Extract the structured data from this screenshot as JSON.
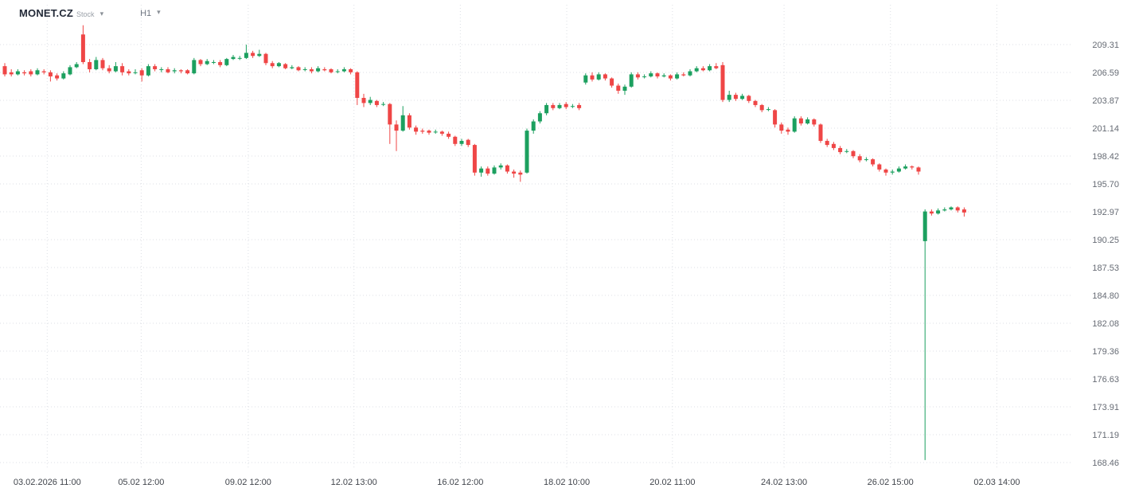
{
  "header": {
    "symbol": "MONET.CZ",
    "instrument_type": "Stock",
    "timeframe": "H1"
  },
  "icons": {
    "chevron_down": "▾"
  },
  "chart_data": {
    "type": "candlestick",
    "title": "MONET.CZ Stock H1",
    "ylim": [
      168.46,
      209.31
    ],
    "grid": true,
    "legend": "none",
    "y_ticks": [
      209.31,
      206.59,
      203.87,
      201.14,
      198.42,
      195.7,
      192.97,
      190.25,
      187.53,
      184.8,
      182.08,
      179.36,
      176.63,
      173.91,
      171.19,
      168.46
    ],
    "x_tick_pos_unit": "candle_index",
    "x_ticks": [
      {
        "pos": 6.5,
        "label": "03.02.2026 11:00"
      },
      {
        "pos": 20.9,
        "label": "05.02 12:00"
      },
      {
        "pos": 37.3,
        "label": "09.02 12:00"
      },
      {
        "pos": 53.5,
        "label": "12.02 13:00"
      },
      {
        "pos": 69.8,
        "label": "16.02 12:00"
      },
      {
        "pos": 86.1,
        "label": "18.02 10:00"
      },
      {
        "pos": 102.3,
        "label": "20.02 11:00"
      },
      {
        "pos": 119.4,
        "label": "24.02 13:00"
      },
      {
        "pos": 135.7,
        "label": "26.02 15:00"
      },
      {
        "pos": 152,
        "label": "02.03 14:00"
      }
    ],
    "candle_format": [
      "open",
      "high",
      "low",
      "close"
    ],
    "candles": [
      [
        207.2,
        207.5,
        206.2,
        206.4
      ],
      [
        206.6,
        206.9,
        206.2,
        206.4
      ],
      [
        206.4,
        206.9,
        206.3,
        206.7
      ],
      [
        206.6,
        206.8,
        206.3,
        206.5
      ],
      [
        206.7,
        206.9,
        206.2,
        206.4
      ],
      [
        206.4,
        207.0,
        206.3,
        206.8
      ],
      [
        206.7,
        206.9,
        206.4,
        206.6
      ],
      [
        206.6,
        206.8,
        205.7,
        206.2
      ],
      [
        206.3,
        206.5,
        205.8,
        206.0
      ],
      [
        206.0,
        206.7,
        205.9,
        206.5
      ],
      [
        206.4,
        207.3,
        206.3,
        207.1
      ],
      [
        207.1,
        207.6,
        207.0,
        207.4
      ],
      [
        210.3,
        211.2,
        207.4,
        207.6
      ],
      [
        207.6,
        207.9,
        206.6,
        206.9
      ],
      [
        206.9,
        208.1,
        206.8,
        207.8
      ],
      [
        207.8,
        208.0,
        206.8,
        207.0
      ],
      [
        207.0,
        207.3,
        206.5,
        206.7
      ],
      [
        206.7,
        207.6,
        206.6,
        207.2
      ],
      [
        207.2,
        207.5,
        206.3,
        206.6
      ],
      [
        206.7,
        206.9,
        206.3,
        206.5
      ],
      [
        206.6,
        206.9,
        206.4,
        206.6
      ],
      [
        206.8,
        207.0,
        205.7,
        206.3
      ],
      [
        206.3,
        207.4,
        206.2,
        207.2
      ],
      [
        207.2,
        207.4,
        206.7,
        206.9
      ],
      [
        206.9,
        207.1,
        206.6,
        206.9
      ],
      [
        206.9,
        207.1,
        206.5,
        206.6
      ],
      [
        206.7,
        207.0,
        206.5,
        206.8
      ],
      [
        206.8,
        206.9,
        206.5,
        206.7
      ],
      [
        206.8,
        206.9,
        206.4,
        206.5
      ],
      [
        206.5,
        208.0,
        206.4,
        207.8
      ],
      [
        207.8,
        207.9,
        207.2,
        207.4
      ],
      [
        207.4,
        207.9,
        207.3,
        207.7
      ],
      [
        207.6,
        207.8,
        207.4,
        207.6
      ],
      [
        207.6,
        207.8,
        207.1,
        207.3
      ],
      [
        207.3,
        208.0,
        207.2,
        207.9
      ],
      [
        207.9,
        208.3,
        207.8,
        208.1
      ],
      [
        208.0,
        208.2,
        207.8,
        208.0
      ],
      [
        208.0,
        209.3,
        207.9,
        208.5
      ],
      [
        208.5,
        208.7,
        208.0,
        208.2
      ],
      [
        208.2,
        208.8,
        208.1,
        208.4
      ],
      [
        208.4,
        208.5,
        207.3,
        207.5
      ],
      [
        207.5,
        207.7,
        207.0,
        207.2
      ],
      [
        207.2,
        207.6,
        207.1,
        207.5
      ],
      [
        207.4,
        207.5,
        206.9,
        207.0
      ],
      [
        207.0,
        207.3,
        206.9,
        207.1
      ],
      [
        207.1,
        207.2,
        206.7,
        206.8
      ],
      [
        206.9,
        207.1,
        206.7,
        206.9
      ],
      [
        206.9,
        207.1,
        206.5,
        206.7
      ],
      [
        206.7,
        207.2,
        206.6,
        207.0
      ],
      [
        206.9,
        207.1,
        206.7,
        206.8
      ],
      [
        206.9,
        207.0,
        206.5,
        206.6
      ],
      [
        206.7,
        206.9,
        206.5,
        206.7
      ],
      [
        206.7,
        207.1,
        206.6,
        206.9
      ],
      [
        206.9,
        207.0,
        206.4,
        206.6
      ],
      [
        206.6,
        206.7,
        203.4,
        204.1
      ],
      [
        204.1,
        204.5,
        203.2,
        203.6
      ],
      [
        203.6,
        204.2,
        203.4,
        203.9
      ],
      [
        203.8,
        203.9,
        203.2,
        203.4
      ],
      [
        203.5,
        203.7,
        203.3,
        203.5
      ],
      [
        203.5,
        203.6,
        199.6,
        201.5
      ],
      [
        201.5,
        201.9,
        198.9,
        200.9
      ],
      [
        200.9,
        203.3,
        200.8,
        202.4
      ],
      [
        202.4,
        202.6,
        201.0,
        201.2
      ],
      [
        201.2,
        201.4,
        200.5,
        200.8
      ],
      [
        200.9,
        201.1,
        200.6,
        200.8
      ],
      [
        200.9,
        201.0,
        200.5,
        200.7
      ],
      [
        200.8,
        201.0,
        200.6,
        200.8
      ],
      [
        200.8,
        200.9,
        200.4,
        200.6
      ],
      [
        200.6,
        200.8,
        200.1,
        200.3
      ],
      [
        200.3,
        200.4,
        199.4,
        199.6
      ],
      [
        199.6,
        200.1,
        199.4,
        199.9
      ],
      [
        200.0,
        200.1,
        199.3,
        199.5
      ],
      [
        199.5,
        199.6,
        196.5,
        196.8
      ],
      [
        196.8,
        197.4,
        196.4,
        197.2
      ],
      [
        197.2,
        197.4,
        196.5,
        196.7
      ],
      [
        196.7,
        197.5,
        196.6,
        197.3
      ],
      [
        197.3,
        197.7,
        197.1,
        197.5
      ],
      [
        197.5,
        197.6,
        196.7,
        196.9
      ],
      [
        196.9,
        197.1,
        196.3,
        196.7
      ],
      [
        196.8,
        197.0,
        195.9,
        196.6
      ],
      [
        196.8,
        201.1,
        196.7,
        200.9
      ],
      [
        200.9,
        202.0,
        200.6,
        201.8
      ],
      [
        201.8,
        202.8,
        201.6,
        202.6
      ],
      [
        202.6,
        203.6,
        202.4,
        203.4
      ],
      [
        203.4,
        203.6,
        202.9,
        203.1
      ],
      [
        203.1,
        203.6,
        203.0,
        203.4
      ],
      [
        203.5,
        203.7,
        203.0,
        203.2
      ],
      [
        203.3,
        203.5,
        203.1,
        203.3
      ],
      [
        203.4,
        203.6,
        202.9,
        203.1
      ],
      [
        205.6,
        206.5,
        205.4,
        206.3
      ],
      [
        206.3,
        206.6,
        205.7,
        205.9
      ],
      [
        205.9,
        206.6,
        205.8,
        206.4
      ],
      [
        206.4,
        206.5,
        205.8,
        206.0
      ],
      [
        206.0,
        206.1,
        205.1,
        205.3
      ],
      [
        205.3,
        205.5,
        204.5,
        204.8
      ],
      [
        204.8,
        205.4,
        204.4,
        205.2
      ],
      [
        205.2,
        206.6,
        205.1,
        206.4
      ],
      [
        206.4,
        206.6,
        205.9,
        206.1
      ],
      [
        206.2,
        206.4,
        206.0,
        206.2
      ],
      [
        206.2,
        206.7,
        206.1,
        206.5
      ],
      [
        206.5,
        206.6,
        206.0,
        206.2
      ],
      [
        206.2,
        206.5,
        206.1,
        206.3
      ],
      [
        206.3,
        206.4,
        205.8,
        206.0
      ],
      [
        206.0,
        206.6,
        205.9,
        206.4
      ],
      [
        206.4,
        206.6,
        206.2,
        206.3
      ],
      [
        206.3,
        206.9,
        206.2,
        206.7
      ],
      [
        206.7,
        207.2,
        206.6,
        207.0
      ],
      [
        207.0,
        207.2,
        206.7,
        206.8
      ],
      [
        206.8,
        207.4,
        206.7,
        207.2
      ],
      [
        207.2,
        207.5,
        206.9,
        207.0
      ],
      [
        207.3,
        207.6,
        203.7,
        203.9
      ],
      [
        203.9,
        204.8,
        203.7,
        204.4
      ],
      [
        204.4,
        204.6,
        203.8,
        204.0
      ],
      [
        204.0,
        204.5,
        203.9,
        204.3
      ],
      [
        204.3,
        204.4,
        203.6,
        203.8
      ],
      [
        203.8,
        203.9,
        203.2,
        203.4
      ],
      [
        203.4,
        203.5,
        202.7,
        202.9
      ],
      [
        203.0,
        203.2,
        202.8,
        203.0
      ],
      [
        202.9,
        203.0,
        201.2,
        201.5
      ],
      [
        201.5,
        201.7,
        200.6,
        200.9
      ],
      [
        201.0,
        201.2,
        200.5,
        200.8
      ],
      [
        200.8,
        202.3,
        200.7,
        202.1
      ],
      [
        202.1,
        202.3,
        201.4,
        201.6
      ],
      [
        201.6,
        202.2,
        201.5,
        202.0
      ],
      [
        202.0,
        202.1,
        201.3,
        201.5
      ],
      [
        201.5,
        201.6,
        199.7,
        199.9
      ],
      [
        199.9,
        200.1,
        199.3,
        199.5
      ],
      [
        199.6,
        199.8,
        199.0,
        199.2
      ],
      [
        199.2,
        199.4,
        198.6,
        198.8
      ],
      [
        198.9,
        199.1,
        198.7,
        198.9
      ],
      [
        198.9,
        199.0,
        198.2,
        198.4
      ],
      [
        198.4,
        198.6,
        197.8,
        198.0
      ],
      [
        198.1,
        198.3,
        197.9,
        198.1
      ],
      [
        198.1,
        198.2,
        197.4,
        197.6
      ],
      [
        197.6,
        197.7,
        196.9,
        197.1
      ],
      [
        197.1,
        197.2,
        196.5,
        196.8
      ],
      [
        196.8,
        197.1,
        196.6,
        196.9
      ],
      [
        196.9,
        197.4,
        196.8,
        197.2
      ],
      [
        197.2,
        197.6,
        197.1,
        197.4
      ],
      [
        197.4,
        197.5,
        197.1,
        197.3
      ],
      [
        197.3,
        197.4,
        196.6,
        196.9
      ],
      [
        190.1,
        193.2,
        168.7,
        193.0
      ],
      [
        193.0,
        193.2,
        192.6,
        192.8
      ],
      [
        192.8,
        193.3,
        192.7,
        193.1
      ],
      [
        193.1,
        193.4,
        193.0,
        193.2
      ],
      [
        193.2,
        193.5,
        193.1,
        193.4
      ],
      [
        193.4,
        193.5,
        192.9,
        193.1
      ],
      [
        193.2,
        193.4,
        192.5,
        192.9
      ]
    ],
    "style": {
      "up_color": "#1ca05f",
      "down_color": "#ef4646",
      "grid_color": "#dcdfe4",
      "price_label_color": "#666b74",
      "time_label_color": "#41454c",
      "background": "#ffffff"
    }
  }
}
